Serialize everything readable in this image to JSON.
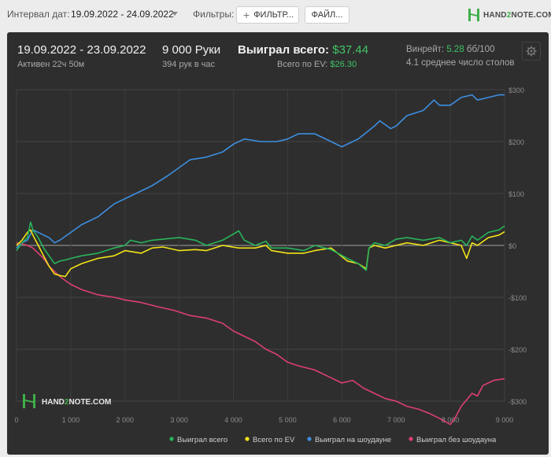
{
  "toolbar": {
    "interval_label": "Интервал дат:",
    "interval_value": "19.09.2022 - 24.09.2022",
    "filters_label": "Фильтры:",
    "filter_button": "ФИЛЬТР...",
    "files_button": "ФАЙЛ...",
    "logo_text_1": "HAND",
    "logo_text_2": "2",
    "logo_text_3": "NOTE.COM"
  },
  "summary": {
    "date_range": "19.09.2022 - 23.09.2022",
    "active": "Активен 22ч 50м",
    "hands": "9 000 Руки",
    "hands_per_hour": "394 рук в час",
    "won_label": "Выиграл всего:",
    "won_value": "$37.44",
    "ev_label": "Всего по EV:",
    "ev_value": "$26.30",
    "winrate_label": "Винрейт:",
    "winrate_value": "5.28",
    "winrate_unit": "бб/100",
    "tables": "4.1 среднее число столов"
  },
  "watermark": {
    "text_1": "HAND",
    "text_2": "2",
    "text_3": "NOTE.COM"
  },
  "colors": {
    "total": "#28b45a",
    "ev": "#f2e416",
    "showdown": "#3d8fe0",
    "nonshowdown": "#de3f72",
    "zero_line": "#8a8a8a"
  },
  "chart_data": {
    "type": "line",
    "x_ticks": [
      "0",
      "1 000",
      "2 000",
      "3 000",
      "4 000",
      "5 000",
      "6 000",
      "7 000",
      "8 000",
      "9 000"
    ],
    "y_ticks": [
      "$300",
      "$200",
      "$100",
      "$0",
      "-$100",
      "-$200",
      "-$300"
    ],
    "xlim": [
      0,
      9000
    ],
    "ylim": [
      -300,
      300
    ],
    "grid": true,
    "legend_position": "bottom-right",
    "series": [
      {
        "name": "Выиграл всего",
        "color_key": "total",
        "x": [
          0,
          100,
          200,
          260,
          300,
          400,
          500,
          600,
          700,
          800,
          900,
          1000,
          1200,
          1500,
          1800,
          2000,
          2100,
          2300,
          2500,
          2700,
          3000,
          3300,
          3500,
          3800,
          4100,
          4200,
          4400,
          4600,
          4700,
          5000,
          5300,
          5500,
          5800,
          6100,
          6300,
          6450,
          6500,
          6600,
          6800,
          7000,
          7200,
          7500,
          7800,
          8000,
          8200,
          8300,
          8400,
          8500,
          8700,
          8900,
          9000
        ],
        "y": [
          -10,
          5,
          15,
          45,
          30,
          15,
          -5,
          -20,
          -35,
          -30,
          -28,
          -25,
          -20,
          -15,
          -5,
          0,
          10,
          5,
          10,
          12,
          15,
          10,
          0,
          10,
          28,
          10,
          0,
          8,
          -5,
          -5,
          -10,
          0,
          -8,
          -25,
          -35,
          -48,
          -5,
          5,
          0,
          12,
          15,
          10,
          15,
          5,
          10,
          0,
          18,
          10,
          25,
          30,
          37.44
        ]
      },
      {
        "name": "Всего по EV",
        "color_key": "ev",
        "x": [
          0,
          100,
          200,
          260,
          300,
          400,
          500,
          600,
          700,
          800,
          900,
          1000,
          1200,
          1500,
          1800,
          2000,
          2300,
          2500,
          2700,
          3000,
          3300,
          3500,
          3800,
          4100,
          4400,
          4600,
          4700,
          5000,
          5300,
          5500,
          5800,
          6100,
          6300,
          6450,
          6500,
          6600,
          6800,
          7000,
          7200,
          7500,
          7800,
          8000,
          8200,
          8300,
          8400,
          8500,
          8700,
          8900,
          9000
        ],
        "y": [
          0,
          10,
          25,
          30,
          20,
          0,
          -20,
          -40,
          -55,
          -58,
          -60,
          -45,
          -35,
          -25,
          -20,
          -10,
          -15,
          -5,
          -3,
          -10,
          -8,
          -10,
          0,
          -5,
          -5,
          0,
          -10,
          -15,
          -15,
          -10,
          -5,
          -30,
          -35,
          -45,
          -5,
          0,
          -5,
          0,
          5,
          0,
          10,
          5,
          0,
          -25,
          5,
          0,
          15,
          20,
          26.3
        ]
      },
      {
        "name": "Выиграл на шоудауне",
        "color_key": "showdown",
        "x": [
          0,
          100,
          200,
          300,
          400,
          500,
          600,
          700,
          800,
          1000,
          1200,
          1500,
          1800,
          2000,
          2200,
          2500,
          2800,
          3000,
          3200,
          3500,
          3800,
          4000,
          4200,
          4500,
          4800,
          5000,
          5200,
          5500,
          5800,
          6000,
          6300,
          6600,
          6700,
          6900,
          7000,
          7200,
          7500,
          7700,
          7800,
          8000,
          8200,
          8400,
          8500,
          8700,
          8900,
          9000
        ],
        "y": [
          -5,
          5,
          10,
          30,
          25,
          20,
          15,
          5,
          10,
          25,
          40,
          55,
          80,
          90,
          100,
          115,
          135,
          150,
          165,
          170,
          180,
          195,
          205,
          200,
          200,
          205,
          215,
          215,
          200,
          190,
          205,
          230,
          240,
          225,
          230,
          250,
          260,
          280,
          270,
          270,
          285,
          290,
          280,
          285,
          290,
          290
        ]
      },
      {
        "name": "Выиграл без шоудауна",
        "color_key": "nonshowdown",
        "x": [
          0,
          100,
          200,
          300,
          400,
          500,
          600,
          800,
          1000,
          1200,
          1500,
          1800,
          2000,
          2300,
          2600,
          2900,
          3200,
          3500,
          3800,
          4000,
          4200,
          4400,
          4600,
          4800,
          5000,
          5200,
          5500,
          5800,
          6000,
          6200,
          6400,
          6600,
          6800,
          7000,
          7200,
          7400,
          7600,
          7800,
          8000,
          8100,
          8200,
          8400,
          8500,
          8600,
          8800,
          9000
        ],
        "y": [
          5,
          3,
          0,
          -5,
          -15,
          -25,
          -40,
          -60,
          -75,
          -85,
          -95,
          -100,
          -105,
          -110,
          -118,
          -125,
          -135,
          -140,
          -150,
          -165,
          -175,
          -185,
          -200,
          -210,
          -225,
          -232,
          -240,
          -255,
          -265,
          -260,
          -275,
          -285,
          -295,
          -300,
          -310,
          -315,
          -323,
          -333,
          -345,
          -330,
          -310,
          -285,
          -290,
          -270,
          -260,
          -257
        ]
      }
    ]
  }
}
